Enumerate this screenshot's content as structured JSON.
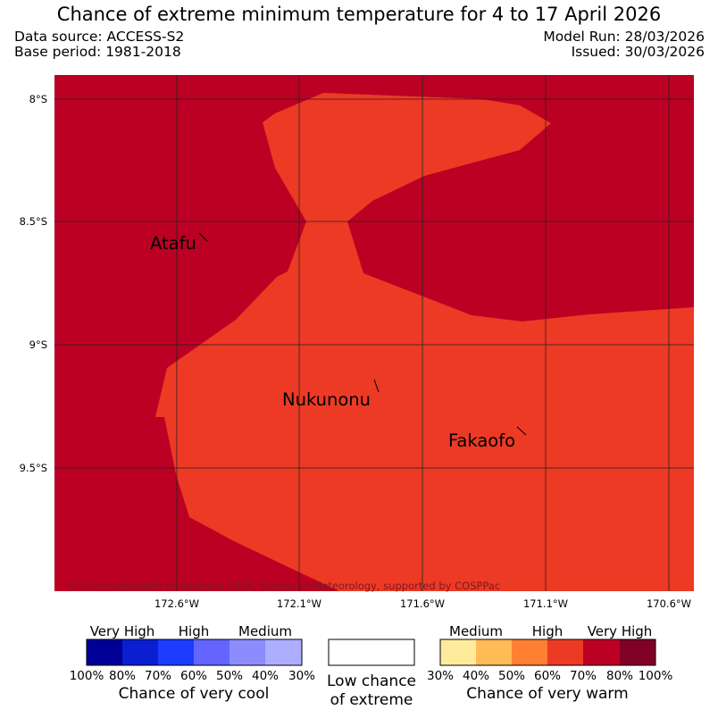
{
  "title": "Chance of extreme minimum temperature for 4 to 17 April 2026",
  "meta": {
    "data_source": "Data source: ACCESS-S2",
    "base_period": "Base period: 1981-2018",
    "model_run": "Model Run: 28/03/2026",
    "issued": "Issued: 30/03/2026"
  },
  "map": {
    "lat_labels": [
      "8°S",
      "8.5°S",
      "9°S",
      "9.5°S"
    ],
    "lon_labels": [
      "172.6°W",
      "172.1°W",
      "171.6°W",
      "171.1°W",
      "170.6°W"
    ],
    "places": [
      "Atafu",
      "Nukunonu",
      "Fakaofo"
    ],
    "copyright": "© Commonwealth of Australia 2026, Bureau of Meteorology, supported by COSPPac",
    "colors": {
      "very_high_warm": "#bb0023",
      "high_warm": "#ec3a25",
      "grid": "#222222"
    }
  },
  "legend": {
    "cool": {
      "headers": [
        "Very High",
        "High",
        "Medium"
      ],
      "ticks": [
        "100%",
        "80%",
        "70%",
        "60%",
        "50%",
        "40%",
        "30%"
      ],
      "colors": [
        "#000096",
        "#0a1fcf",
        "#1e3cff",
        "#6464ff",
        "#8c8cff",
        "#aeaeff"
      ],
      "title": "Chance of very cool"
    },
    "neutral": {
      "line1": "Low chance",
      "line2": "of extreme",
      "color": "#ffffff"
    },
    "warm": {
      "headers": [
        "Medium",
        "High",
        "Very High"
      ],
      "ticks": [
        "30%",
        "40%",
        "50%",
        "60%",
        "70%",
        "80%",
        "100%"
      ],
      "colors": [
        "#ffeb9c",
        "#ffbb55",
        "#ff7f33",
        "#ec3a25",
        "#bb0023",
        "#800026"
      ],
      "title": "Chance of very warm"
    }
  }
}
